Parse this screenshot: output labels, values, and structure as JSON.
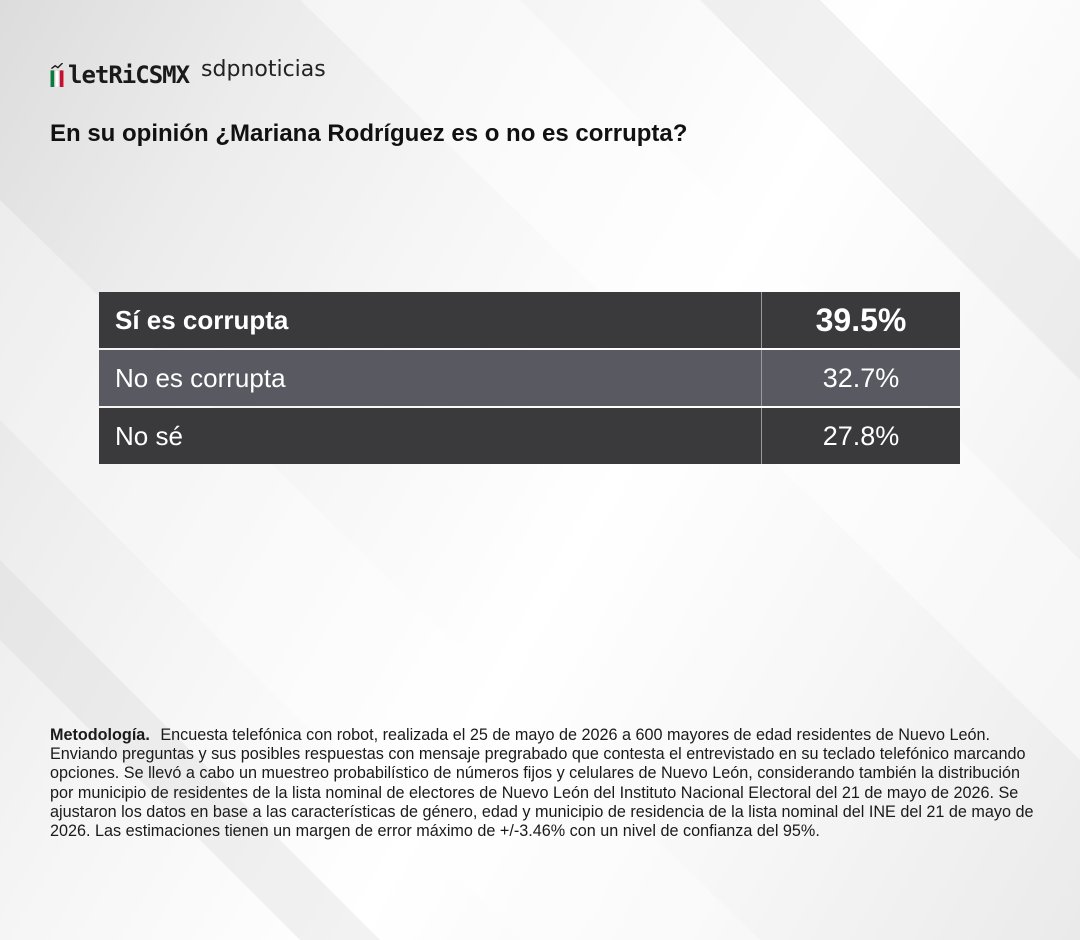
{
  "header": {
    "logo_text": "letRiCSMX",
    "partner": "sdpnoticias",
    "flag_colors": [
      "#0b7a3e",
      "#ffffff",
      "#c8102e"
    ]
  },
  "chart_data": {
    "type": "table",
    "title": "En su opinión ¿Mariana Rodríguez es o no es corrupta?",
    "rows": [
      {
        "label": "Sí es corrupta",
        "value": 39.5,
        "display": "39.5%"
      },
      {
        "label": "No es corrupta",
        "value": 32.7,
        "display": "32.7%"
      },
      {
        "label": "No sé",
        "value": 27.8,
        "display": "27.8%"
      }
    ],
    "unit": "%"
  },
  "methodology": {
    "title": "Metodología.",
    "text": "Encuesta telefónica con robot, realizada el 25 de mayo de 2026 a 600 mayores de edad residentes de Nuevo León. Enviando preguntas y sus posibles respuestas con mensaje pregrabado que contesta el entrevistado en su teclado telefónico marcando opciones. Se llevó a cabo un muestreo probabilístico de números fijos y celulares de Nuevo León, considerando también la distribución por municipio de residentes de la lista nominal de electores de Nuevo León del Instituto Nacional Electoral del 21 de mayo de 2026. Se ajustaron los datos en base a las características de género, edad y municipio de residencia de la lista nominal del INE del 21 de mayo de 2026. Las estimaciones tienen un margen de error máximo de +/-3.46% con un nivel de confianza del 95%."
  },
  "colors": {
    "row_dark": "#3a3a3c",
    "row_mid": "#595a61",
    "text_light": "#ffffff"
  }
}
